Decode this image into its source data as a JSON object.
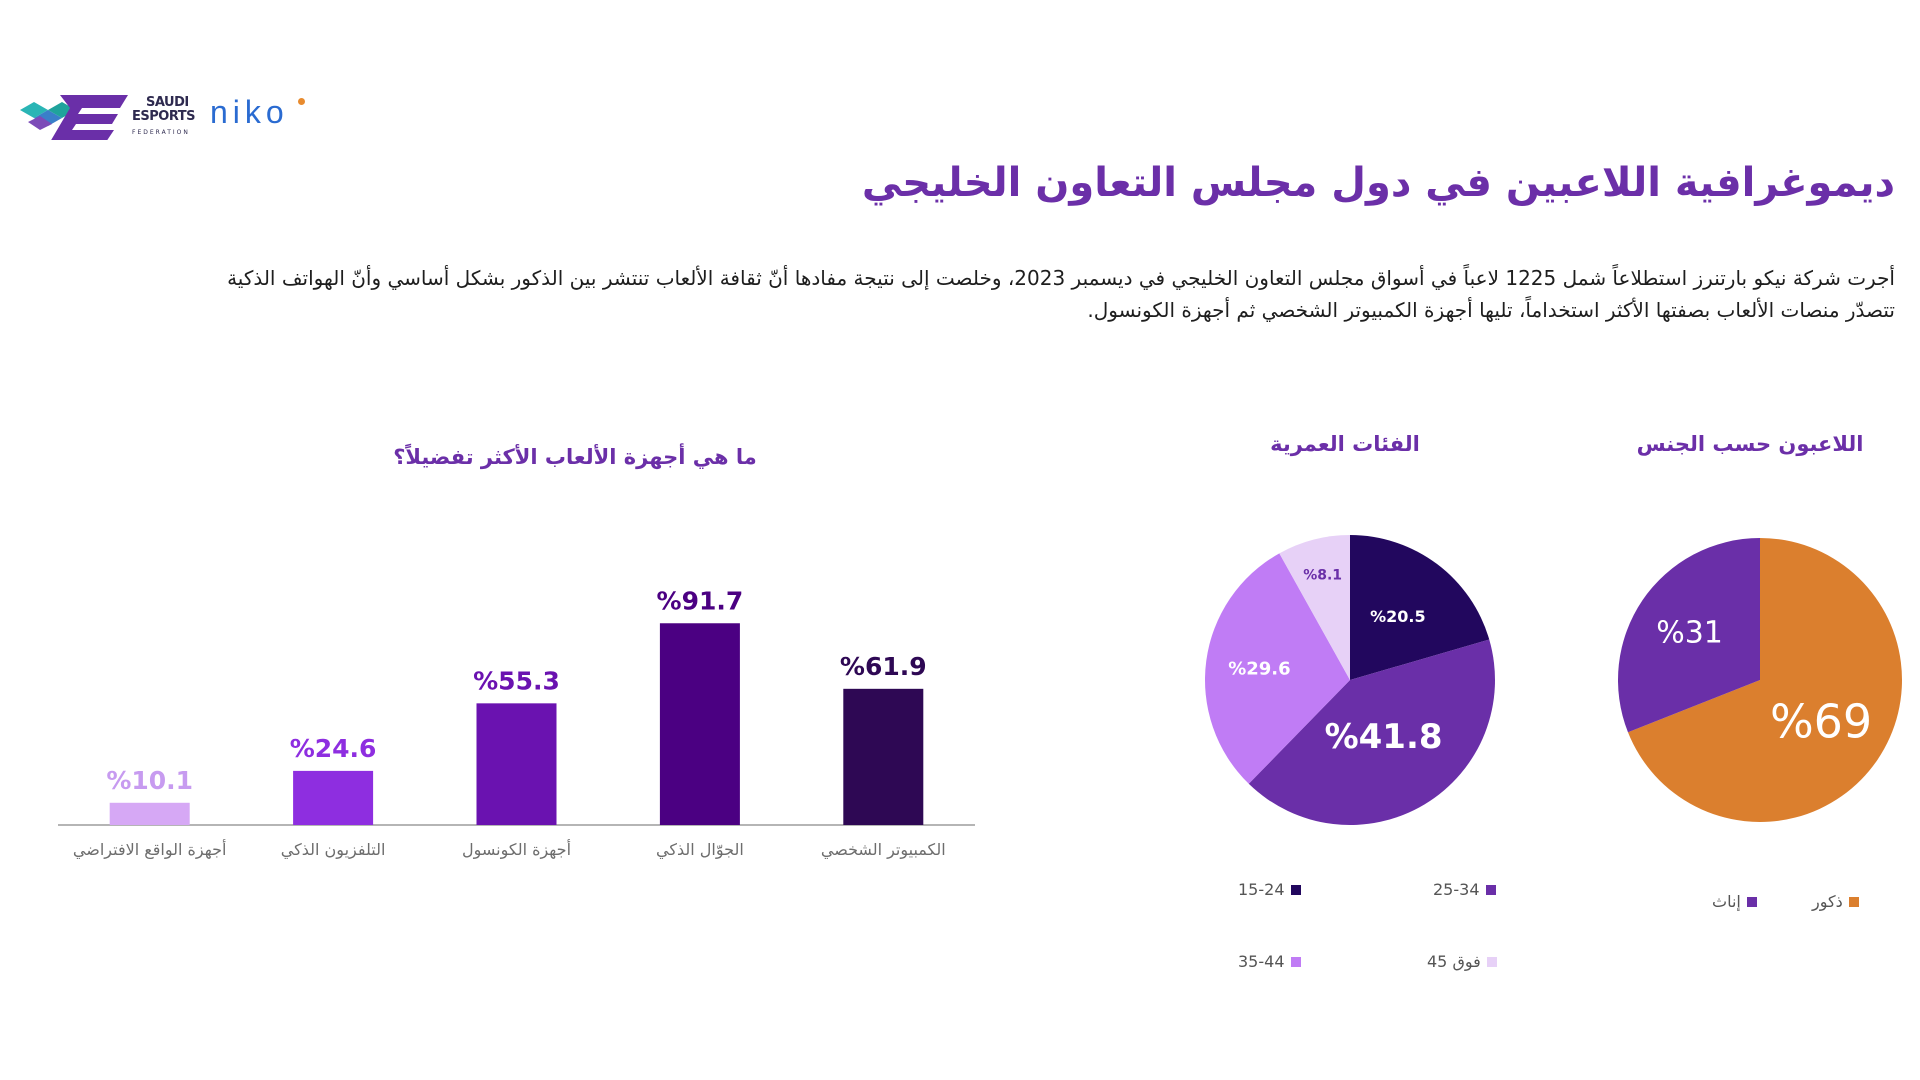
{
  "header": {
    "logo_saudi_esports": {
      "line1": "SAUDI",
      "line2": "ESPORTS",
      "line3": "FEDERATION"
    },
    "logo_niko": "niko"
  },
  "page": {
    "title": "ديموغرافية اللاعبين في دول مجلس التعاون الخليجي",
    "intro_line1": "أجرت شركة نيكو بارتنرز استطلاعاً شمل 1225 لاعباً في أسواق مجلس التعاون الخليجي في ديسمبر 2023، وخلصت إلى نتيجة مفادها أنّ ثقافة الألعاب تنتشر بين الذكور بشكل أساسي وأنّ الهواتف الذكية",
    "intro_line2": "تتصدّر منصات الألعاب بصفتها الأكثر استخداماً، تليها أجهزة الكمبيوتر الشخصي ثم أجهزة الكونسول."
  },
  "chart_data": [
    {
      "type": "bar",
      "title": "ما هي أجهزة الألعاب الأكثر تفضيلاً؟",
      "categories": [
        "الكمبيوتر الشخصي",
        "الجوّال الذكي",
        "أجهزة الكونسول",
        "التلفزيون الذكي",
        "أجهزة الواقع الافتراضي"
      ],
      "values": [
        61.9,
        91.7,
        55.3,
        24.6,
        10.1
      ],
      "value_labels": [
        "%61.9",
        "%91.7",
        "%55.3",
        "%24.6",
        "%10.1"
      ],
      "colors": [
        "#2e0854",
        "#4b0082",
        "#6a12b0",
        "#8e2ee0",
        "#d6a8f5"
      ],
      "label_colors": [
        "#2e0854",
        "#4b0082",
        "#6a12b0",
        "#8e2ee0",
        "#c79bf0"
      ],
      "ylim": [
        0,
        100
      ],
      "grid": false,
      "legend": "none"
    },
    {
      "type": "pie",
      "title": "الفئات العمرية",
      "categories": [
        "15-24",
        "25-34",
        "35-44",
        "فوق 45"
      ],
      "values": [
        20.5,
        41.8,
        29.6,
        8.1
      ],
      "value_labels": [
        "%20.5",
        "%41.8",
        "%29.6",
        "%8.1"
      ],
      "colors": [
        "#22075e",
        "#6a2fa8",
        "#c07cf5",
        "#e7d1f7"
      ],
      "legend": "bottom"
    },
    {
      "type": "pie",
      "title": "اللاعبون حسب الجنس",
      "categories": [
        "ذكور",
        "إناث"
      ],
      "values": [
        69,
        31
      ],
      "value_labels": [
        "%69",
        "%31"
      ],
      "colors": [
        "#db7f2e",
        "#6a2fa8"
      ],
      "legend": "bottom"
    }
  ]
}
